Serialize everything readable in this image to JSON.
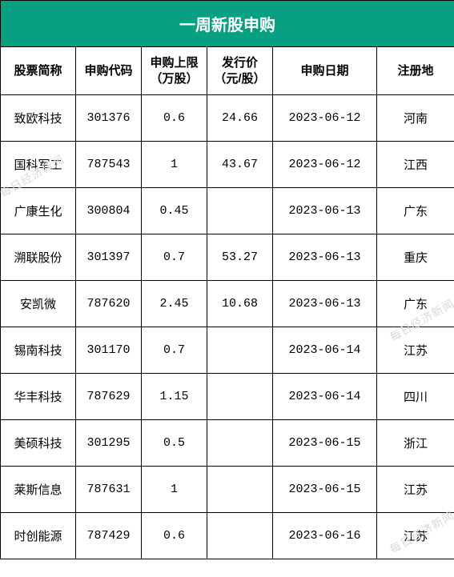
{
  "title": "一周新股申购",
  "title_style": {
    "background_color": "#07a081",
    "text_color": "#ffffff",
    "font_size": 20,
    "font_weight": "bold"
  },
  "border_color": "#000000",
  "background_color": "#ffffff",
  "text_color": "#000000",
  "columns": [
    {
      "key": "name",
      "label": "股票简称",
      "width": 94,
      "align": "center"
    },
    {
      "key": "code",
      "label": "申购代码",
      "width": 82,
      "align": "center"
    },
    {
      "key": "limit",
      "label": "申购上限\n（万股）",
      "width": 82,
      "align": "center"
    },
    {
      "key": "price",
      "label": "发行价\n（元/股）",
      "width": 82,
      "align": "center"
    },
    {
      "key": "date",
      "label": "申购日期",
      "width": 130,
      "align": "center"
    },
    {
      "key": "loc",
      "label": "注册地",
      "width": 97,
      "align": "center"
    }
  ],
  "header_style": {
    "font_size": 15,
    "font_weight": "bold",
    "background_color": "#ffffff"
  },
  "data_style": {
    "font_size": 15,
    "font_family": "SimSun, monospace",
    "row_padding_v": 18
  },
  "rows": [
    {
      "name": "致欧科技",
      "code": "301376",
      "limit": "0.6",
      "price": "24.66",
      "date": "2023-06-12",
      "loc": "河南"
    },
    {
      "name": "国科军工",
      "code": "787543",
      "limit": "1",
      "price": "43.67",
      "date": "2023-06-12",
      "loc": "江西"
    },
    {
      "name": "广康生化",
      "code": "300804",
      "limit": "0.45",
      "price": "",
      "date": "2023-06-13",
      "loc": "广东"
    },
    {
      "name": "溯联股份",
      "code": "301397",
      "limit": "0.7",
      "price": "53.27",
      "date": "2023-06-13",
      "loc": "重庆"
    },
    {
      "name": "安凯微",
      "code": "787620",
      "limit": "2.45",
      "price": "10.68",
      "date": "2023-06-13",
      "loc": "广东"
    },
    {
      "name": "锡南科技",
      "code": "301170",
      "limit": "0.7",
      "price": "",
      "date": "2023-06-14",
      "loc": "江苏"
    },
    {
      "name": "华丰科技",
      "code": "787629",
      "limit": "1.15",
      "price": "",
      "date": "2023-06-14",
      "loc": "四川"
    },
    {
      "name": "美硕科技",
      "code": "301295",
      "limit": "0.5",
      "price": "",
      "date": "2023-06-15",
      "loc": "浙江"
    },
    {
      "name": "莱斯信息",
      "code": "787631",
      "limit": "1",
      "price": "",
      "date": "2023-06-15",
      "loc": "江苏"
    },
    {
      "name": "时创能源",
      "code": "787429",
      "limit": "0.6",
      "price": "",
      "date": "2023-06-16",
      "loc": "江苏"
    }
  ],
  "watermark": {
    "text": "每日经济新闻",
    "color": "#d9d9d9",
    "font_size": 14,
    "rotation_deg": -30
  }
}
